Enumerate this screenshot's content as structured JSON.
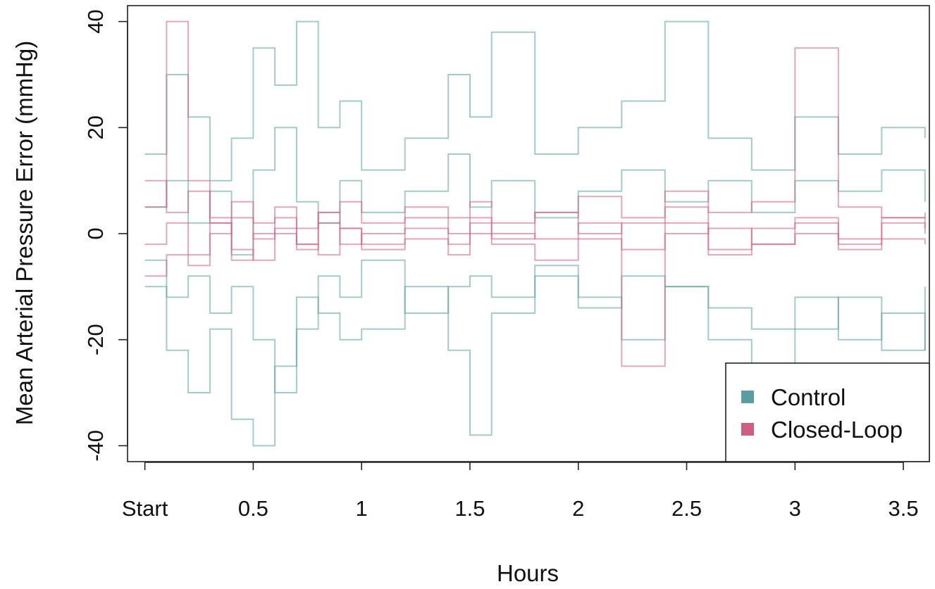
{
  "chart_data": {
    "type": "line",
    "xlabel": "Hours",
    "ylabel": "Mean Arterial Pressure Error (mmHg)",
    "x_ticks": [
      "Start",
      "0.5",
      "1",
      "1.5",
      "2",
      "2.5",
      "3",
      "3.5"
    ],
    "x_tick_values": [
      0,
      0.5,
      1,
      1.5,
      2,
      2.5,
      3,
      3.5
    ],
    "y_ticks": [
      "-40",
      "-20",
      "0",
      "20",
      "40"
    ],
    "y_tick_values": [
      -40,
      -20,
      0,
      20,
      40
    ],
    "xlim": [
      -0.08,
      3.62
    ],
    "ylim": [
      -43,
      43
    ],
    "grid": false,
    "legend_position": "bottom-right",
    "series": [
      {
        "name": "Control",
        "color": "#5b9e9f",
        "values": [
          {
            "x": [
              0,
              0.1,
              0.2,
              0.3,
              0.4,
              0.5,
              0.6,
              0.7,
              0.8,
              0.9,
              1,
              1.2,
              1.4,
              1.5,
              1.6,
              1.8,
              2,
              2.2,
              2.4,
              2.6,
              2.8,
              3,
              3.2,
              3.4,
              3.6
            ],
            "y": [
              -10,
              -22,
              -30,
              -18,
              -35,
              -40,
              -25,
              -12,
              -15,
              -20,
              -18,
              -10,
              -22,
              -38,
              -15,
              -8,
              -12,
              -20,
              -10,
              -14,
              -18,
              -12,
              -20,
              -15,
              -22
            ]
          },
          {
            "x": [
              0,
              0.1,
              0.2,
              0.3,
              0.4,
              0.5,
              0.6,
              0.7,
              0.8,
              0.9,
              1,
              1.2,
              1.4,
              1.5,
              1.6,
              1.8,
              2,
              2.2,
              2.4,
              2.6,
              2.8,
              3,
              3.2,
              3.4,
              3.6
            ],
            "y": [
              15,
              30,
              22,
              10,
              18,
              35,
              28,
              40,
              20,
              25,
              12,
              18,
              30,
              22,
              38,
              15,
              20,
              25,
              40,
              18,
              12,
              22,
              15,
              20,
              18
            ]
          },
          {
            "x": [
              0,
              0.1,
              0.2,
              0.3,
              0.4,
              0.5,
              0.6,
              0.7,
              0.8,
              0.9,
              1,
              1.2,
              1.4,
              1.5,
              1.6,
              1.8,
              2,
              2.2,
              2.4,
              2.6,
              2.8,
              3,
              3.2,
              3.4,
              3.6
            ],
            "y": [
              -5,
              -12,
              -8,
              -15,
              -10,
              -20,
              -30,
              -18,
              -8,
              -12,
              -5,
              -15,
              -10,
              -8,
              -12,
              -6,
              -14,
              -8,
              -10,
              -20,
              -25,
              -18,
              -12,
              -22,
              -10
            ]
          },
          {
            "x": [
              0,
              0.1,
              0.2,
              0.3,
              0.4,
              0.5,
              0.6,
              0.7,
              0.8,
              0.9,
              1,
              1.2,
              1.4,
              1.5,
              1.6,
              1.8,
              2,
              2.2,
              2.4,
              2.6,
              2.8,
              3,
              3.2,
              3.4,
              3.6
            ],
            "y": [
              5,
              10,
              2,
              8,
              -4,
              12,
              20,
              6,
              2,
              10,
              4,
              8,
              15,
              5,
              10,
              3,
              8,
              12,
              6,
              10,
              4,
              10,
              8,
              12,
              6
            ]
          }
        ]
      },
      {
        "name": "Closed-Loop",
        "color": "#cc5f82",
        "values": [
          {
            "x": [
              0,
              0.1,
              0.2,
              0.3,
              0.4,
              0.5,
              0.6,
              0.7,
              0.8,
              0.9,
              1,
              1.2,
              1.4,
              1.5,
              1.6,
              1.8,
              2,
              2.2,
              2.4,
              2.6,
              2.8,
              3,
              3.2,
              3.4,
              3.6
            ],
            "y": [
              5,
              40,
              10,
              2,
              -5,
              0,
              3,
              -2,
              4,
              1,
              -2,
              3,
              0,
              2,
              -1,
              4,
              0,
              2,
              5,
              -3,
              1,
              2,
              -2,
              3,
              0
            ]
          },
          {
            "x": [
              0,
              0.1,
              0.2,
              0.3,
              0.4,
              0.5,
              0.6,
              0.7,
              0.8,
              0.9,
              1,
              1.2,
              1.4,
              1.5,
              1.6,
              1.8,
              2,
              2.2,
              2.4,
              2.6,
              2.8,
              3,
              3.2,
              3.4,
              3.6
            ],
            "y": [
              -8,
              -4,
              -6,
              2,
              -3,
              -5,
              0,
              -2,
              -4,
              1,
              -3,
              -1,
              -4,
              0,
              -2,
              -5,
              -1,
              -3,
              2,
              -4,
              -2,
              0,
              -3,
              -1,
              -2
            ]
          },
          {
            "x": [
              0,
              0.1,
              0.2,
              0.3,
              0.4,
              0.5,
              0.6,
              0.7,
              0.8,
              0.9,
              1,
              1.2,
              1.4,
              1.5,
              1.6,
              1.8,
              2,
              2.2,
              2.4,
              2.6,
              2.8,
              3,
              3.2,
              3.4,
              3.6
            ],
            "y": [
              10,
              4,
              8,
              3,
              6,
              2,
              5,
              1,
              4,
              6,
              2,
              5,
              3,
              6,
              2,
              4,
              7,
              3,
              8,
              4,
              6,
              35,
              5,
              3,
              4
            ]
          },
          {
            "x": [
              0,
              0.1,
              0.2,
              0.3,
              0.4,
              0.5,
              0.6,
              0.7,
              0.8,
              0.9,
              1,
              1.2,
              1.4,
              1.5,
              1.6,
              1.8,
              2,
              2.2,
              2.4,
              2.6,
              2.8,
              3,
              3.2,
              3.4,
              3.6
            ],
            "y": [
              -2,
              2,
              -4,
              0,
              3,
              -1,
              1,
              -3,
              2,
              -2,
              0,
              1,
              -2,
              3,
              0,
              -1,
              2,
              -25,
              0,
              1,
              -2,
              3,
              -1,
              2,
              1
            ]
          }
        ]
      }
    ]
  }
}
